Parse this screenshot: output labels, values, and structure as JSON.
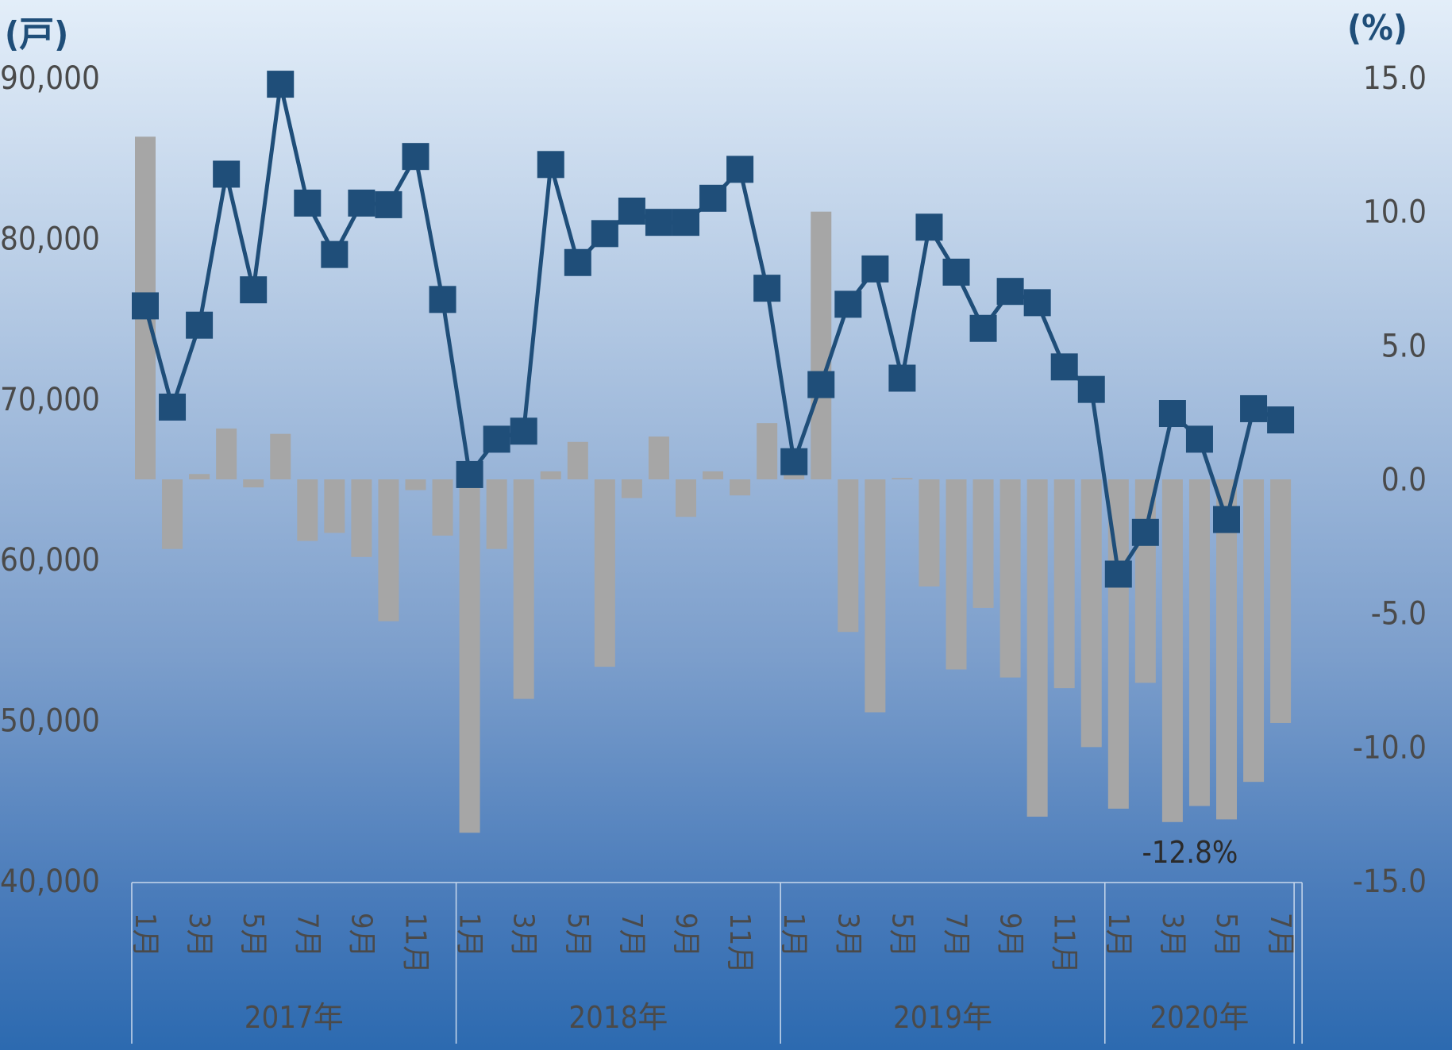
{
  "chart_data": {
    "type": "bar",
    "left_axis": {
      "unit_label": "(戸)",
      "ticks": [
        "90,000",
        "80,000",
        "70,000",
        "60,000",
        "50,000",
        "40,000"
      ],
      "ylim": [
        40000,
        90000
      ]
    },
    "right_axis": {
      "unit_label": "(%)",
      "ticks": [
        "15.0",
        "10.0",
        "5.0",
        "0.0",
        "-5.0",
        "-10.0",
        "-15.0"
      ],
      "ylim": [
        -15,
        15
      ]
    },
    "month_labels": [
      "1月",
      "",
      "3月",
      "",
      "5月",
      "",
      "7月",
      "",
      "9月",
      "",
      "11月",
      "",
      "1月",
      "",
      "3月",
      "",
      "5月",
      "",
      "7月",
      "",
      "9月",
      "",
      "11月",
      "",
      "1月",
      "",
      "3月",
      "",
      "5月",
      "",
      "7月",
      "",
      "9月",
      "",
      "11月",
      "",
      "1月",
      "",
      "3月",
      "",
      "5月",
      "",
      "7月"
    ],
    "years": [
      {
        "label": "2017年",
        "start": 0,
        "count": 12
      },
      {
        "label": "2018年",
        "start": 12,
        "count": 12
      },
      {
        "label": "2019年",
        "start": 24,
        "count": 12
      },
      {
        "label": "2020年",
        "start": 36,
        "count": 7
      }
    ],
    "series": [
      {
        "kind": "bar",
        "axis": "right",
        "color": "#a6a6a6",
        "values": [
          12.8,
          -2.6,
          0.2,
          1.9,
          -0.3,
          1.7,
          -2.3,
          -2.0,
          -2.9,
          -5.3,
          -0.4,
          -2.1,
          -13.2,
          -2.6,
          -8.2,
          0.3,
          1.4,
          -7.0,
          -0.7,
          1.6,
          -1.4,
          0.3,
          -0.6,
          2.1,
          1.0,
          10.0,
          -5.7,
          -8.7,
          0.05,
          -4.0,
          -7.1,
          -4.8,
          -7.4,
          -12.6,
          -7.8,
          -10.0,
          -12.3,
          -7.6,
          -12.8,
          -12.2,
          -12.7,
          -11.3,
          -9.1
        ]
      },
      {
        "kind": "line",
        "axis": "left",
        "color": "#1f4e79",
        "values": [
          75800,
          69500,
          74600,
          84000,
          76800,
          89600,
          82200,
          79000,
          82200,
          82100,
          85100,
          76200,
          65300,
          67500,
          68000,
          84600,
          78500,
          80300,
          81700,
          81000,
          81000,
          82500,
          84300,
          76900,
          66100,
          70900,
          75900,
          78100,
          71300,
          80700,
          77900,
          74400,
          76700,
          76000,
          72000,
          70600,
          59100,
          61700,
          69100,
          67500,
          62500,
          69400,
          68700
        ]
      }
    ],
    "annotations": [
      {
        "index": 38,
        "text": "-12.8%"
      }
    ]
  }
}
